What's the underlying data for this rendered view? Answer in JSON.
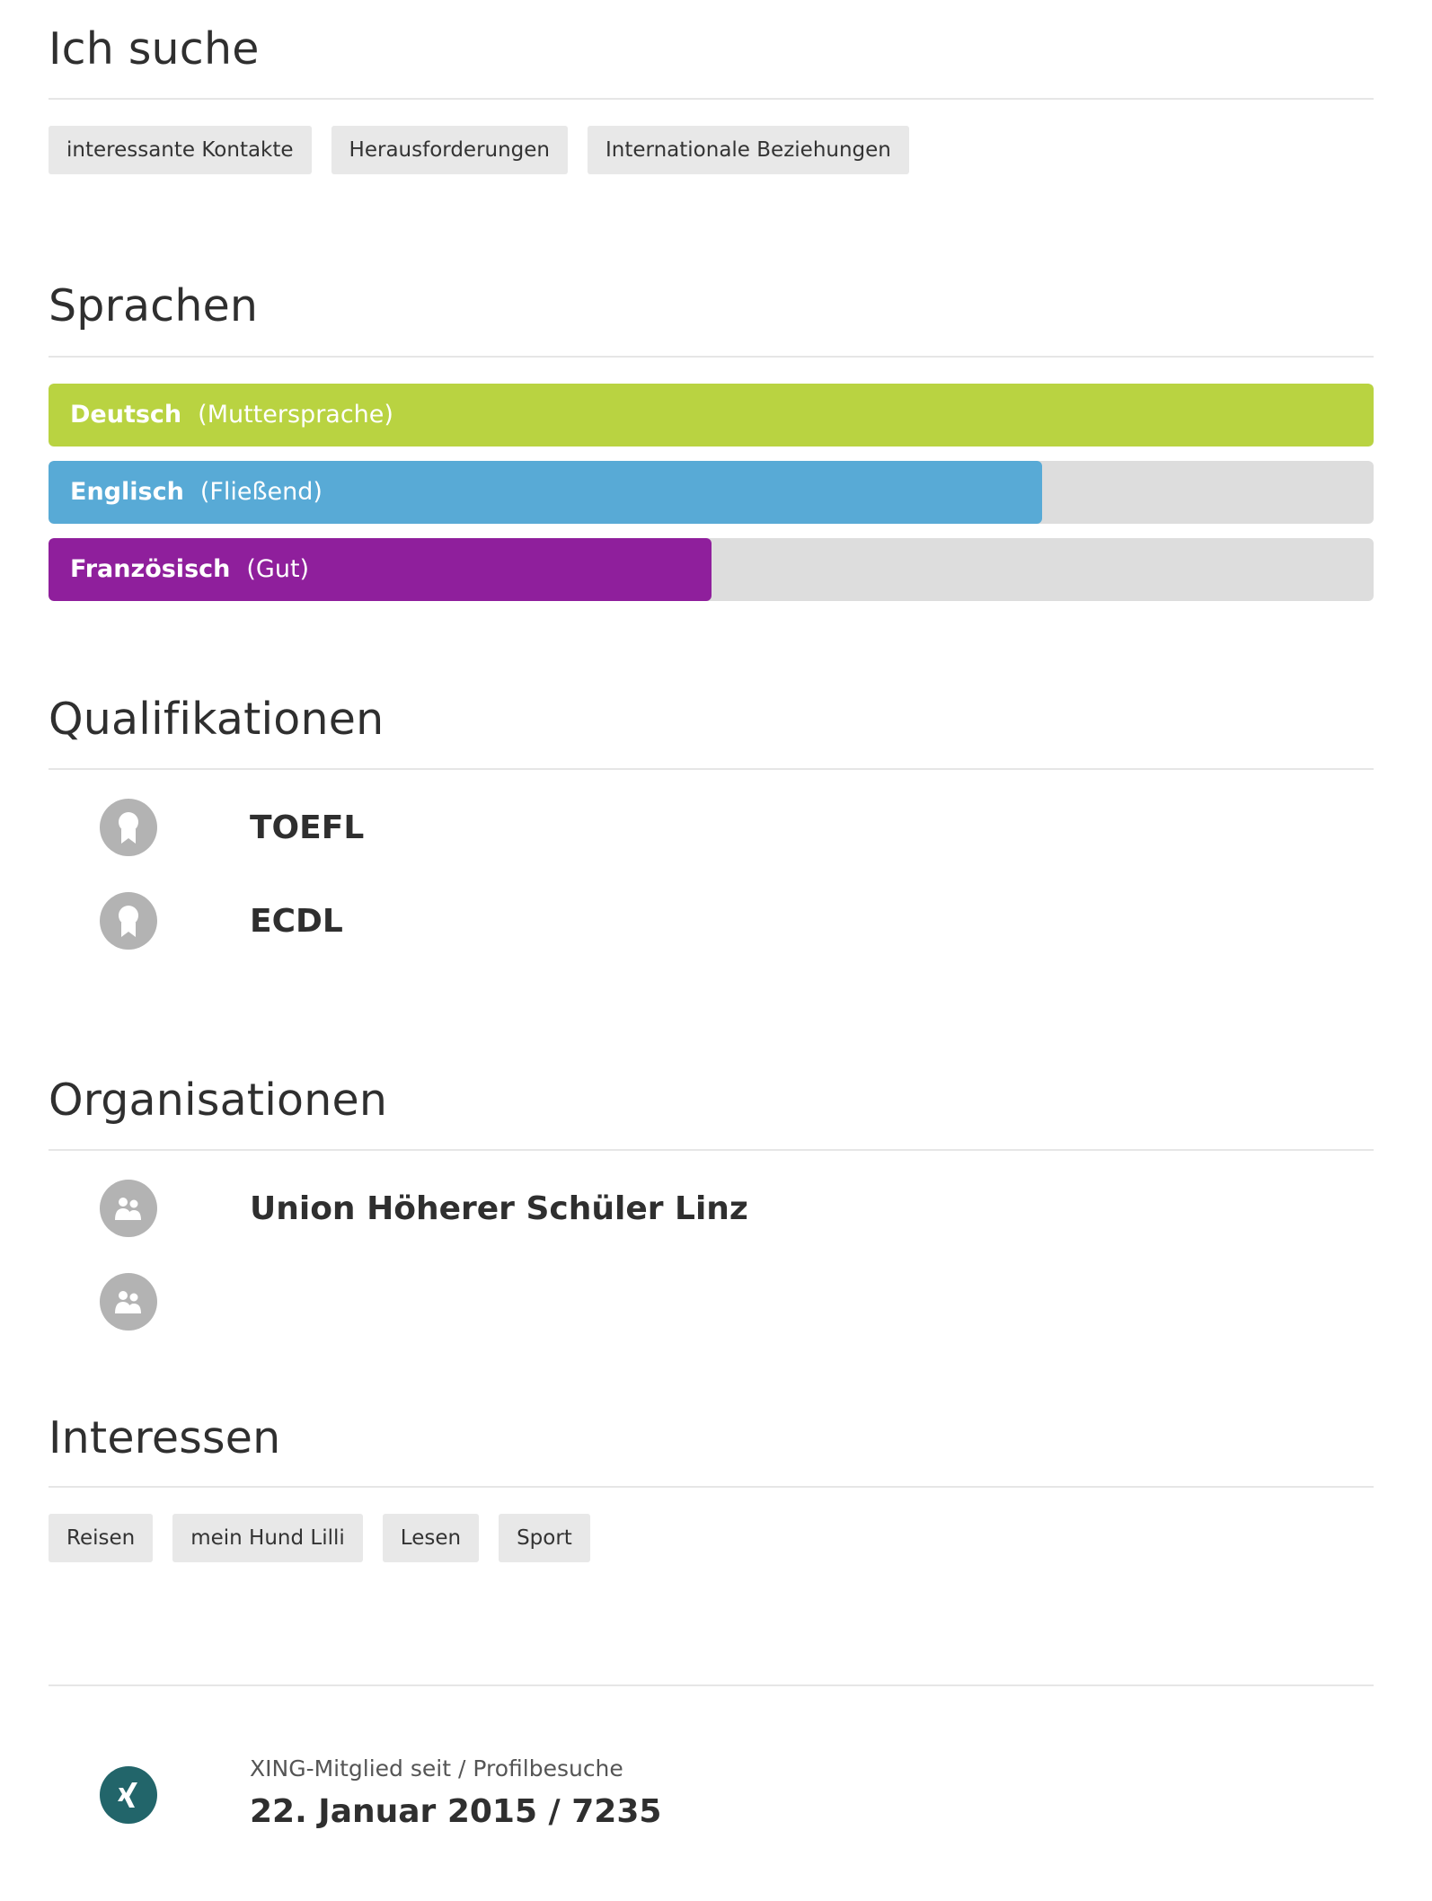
{
  "sections": {
    "seeking": {
      "title": "Ich suche",
      "tags": [
        "interessante Kontakte",
        "Herausforderungen",
        "Internationale Beziehungen"
      ]
    },
    "languages": {
      "title": "Sprachen",
      "items": [
        {
          "name": "Deutsch",
          "level": "(Muttersprache)",
          "proficiency": 1.0,
          "color": "#b9d341"
        },
        {
          "name": "Englisch",
          "level": "(Fließend)",
          "proficiency": 0.75,
          "color": "#58aad6"
        },
        {
          "name": "Französisch",
          "level": "(Gut)",
          "proficiency": 0.5,
          "color": "#8f1f9c"
        }
      ]
    },
    "qualifications": {
      "title": "Qualifikationen",
      "items": [
        "TOEFL",
        "ECDL"
      ],
      "icon": "award-ribbon-icon"
    },
    "organizations": {
      "title": "Organisationen",
      "items": [
        "Union Höherer Schüler Linz",
        ""
      ],
      "icon": "group-icon"
    },
    "interests": {
      "title": "Interessen",
      "tags": [
        "Reisen",
        "mein Hund Lilli",
        "Lesen",
        "Sport"
      ]
    }
  },
  "footer": {
    "icon": "xing-logo-icon",
    "caption": "XING-Mitglied seit / Profilbesuche",
    "value": "22. Januar 2015 / 7235"
  }
}
